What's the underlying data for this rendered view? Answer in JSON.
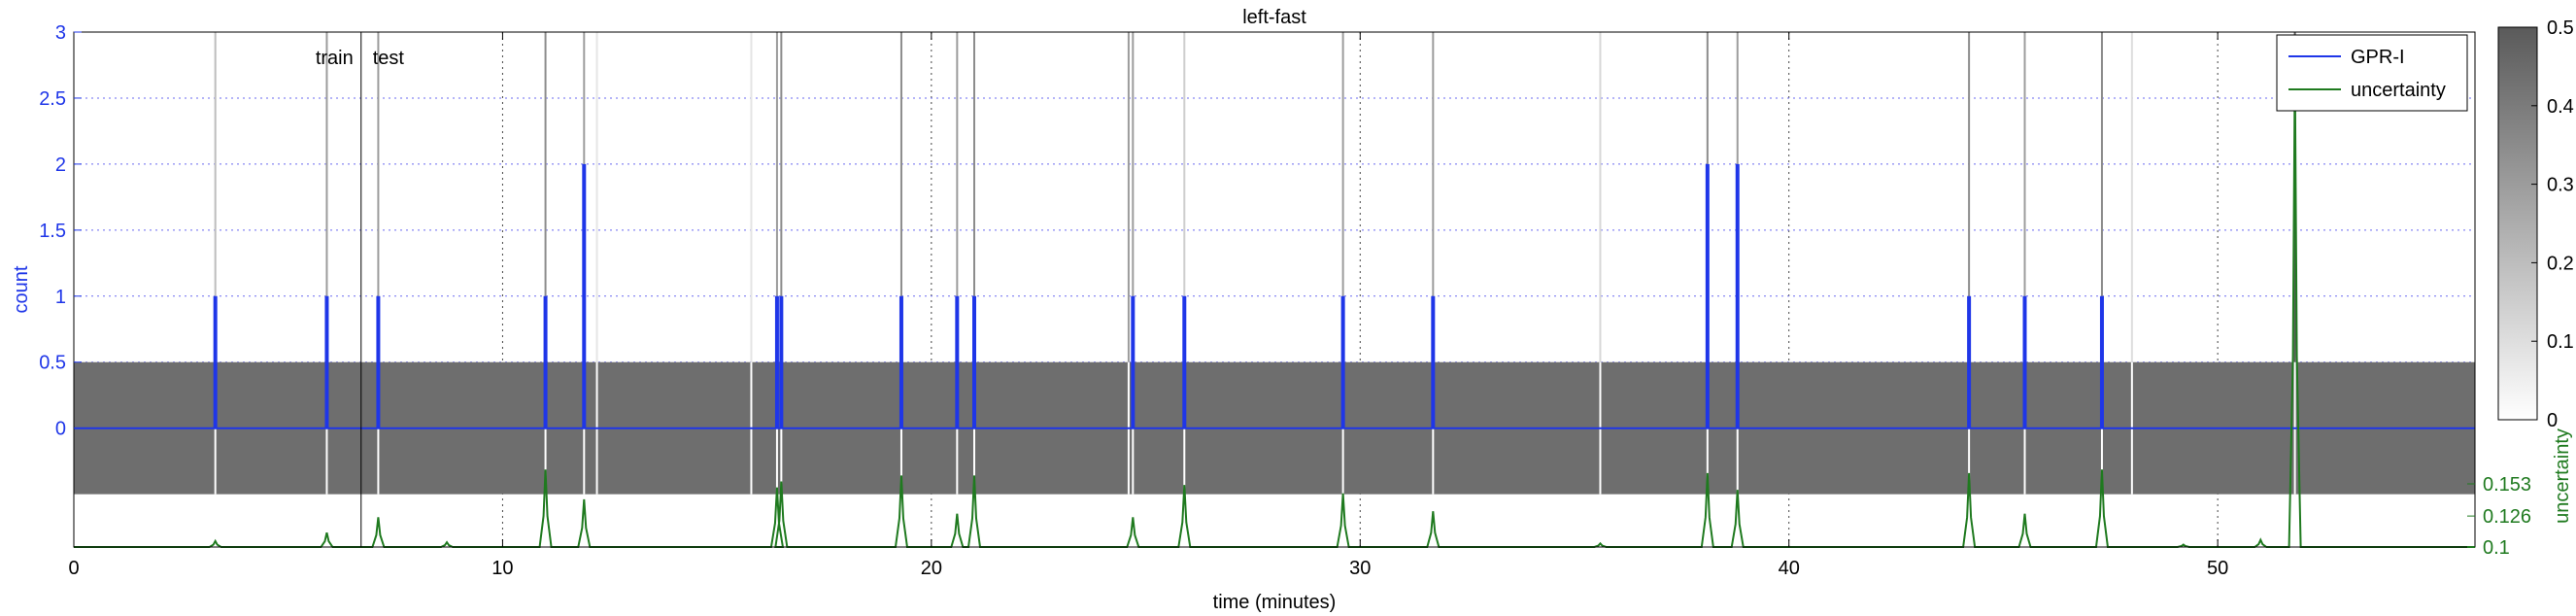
{
  "chart_data": {
    "type": "line",
    "title": "left-fast",
    "xlabel": "time (minutes)",
    "ylabel": "count",
    "y2label": "uncertainty",
    "xlim": [
      0,
      56
    ],
    "ylim": [
      -0.9,
      3
    ],
    "x_ticks": [
      0,
      10,
      20,
      30,
      40,
      50
    ],
    "y_ticks": [
      0,
      0.5,
      1,
      1.5,
      2,
      2.5,
      3
    ],
    "y_tick_labels": [
      "0",
      "0.5",
      "1",
      "1.5",
      "2",
      "2.5",
      "3"
    ],
    "y2_ticks": [
      0.1,
      0.126,
      0.153
    ],
    "y2_tick_labels": [
      "0.1",
      "0.126",
      "0.153"
    ],
    "grid": true,
    "legend": "top-right",
    "band": {
      "from": -0.5,
      "to": 0.5,
      "color": "#6e6e6e"
    },
    "train_test_split": 6.7,
    "split_labels": {
      "train": "train",
      "test": "test"
    },
    "colorbar": {
      "min": 0,
      "max": 0.5,
      "ticks": [
        0,
        0.1,
        0.2,
        0.3,
        0.4,
        0.5
      ],
      "tick_labels": [
        "0",
        "0.1",
        "0.2",
        "0.3",
        "0.4",
        "0.5"
      ]
    },
    "series": [
      {
        "name": "GPR-I",
        "color": "#1f36e8",
        "events": [
          {
            "x": 3.3,
            "y": 1
          },
          {
            "x": 5.9,
            "y": 1
          },
          {
            "x": 7.1,
            "y": 1
          },
          {
            "x": 11.0,
            "y": 1
          },
          {
            "x": 11.9,
            "y": 2
          },
          {
            "x": 16.4,
            "y": 1
          },
          {
            "x": 16.5,
            "y": 1
          },
          {
            "x": 19.3,
            "y": 1
          },
          {
            "x": 20.6,
            "y": 1
          },
          {
            "x": 21.0,
            "y": 1
          },
          {
            "x": 24.7,
            "y": 1
          },
          {
            "x": 25.9,
            "y": 1
          },
          {
            "x": 29.6,
            "y": 1
          },
          {
            "x": 31.7,
            "y": 1
          },
          {
            "x": 38.1,
            "y": 2
          },
          {
            "x": 38.8,
            "y": 2
          },
          {
            "x": 44.2,
            "y": 1
          },
          {
            "x": 45.5,
            "y": 1
          },
          {
            "x": 47.3,
            "y": 1
          }
        ]
      },
      {
        "name": "uncertainty",
        "color": "#1f7a1f",
        "baseline": 0.1,
        "peaks": [
          {
            "x": 3.3,
            "y": 0.105
          },
          {
            "x": 5.9,
            "y": 0.112
          },
          {
            "x": 7.1,
            "y": 0.125
          },
          {
            "x": 8.7,
            "y": 0.104
          },
          {
            "x": 11.0,
            "y": 0.165
          },
          {
            "x": 11.9,
            "y": 0.14
          },
          {
            "x": 16.4,
            "y": 0.15
          },
          {
            "x": 16.5,
            "y": 0.155
          },
          {
            "x": 19.3,
            "y": 0.16
          },
          {
            "x": 20.6,
            "y": 0.128
          },
          {
            "x": 21.0,
            "y": 0.16
          },
          {
            "x": 24.7,
            "y": 0.125
          },
          {
            "x": 25.9,
            "y": 0.152
          },
          {
            "x": 29.6,
            "y": 0.145
          },
          {
            "x": 31.7,
            "y": 0.13
          },
          {
            "x": 35.6,
            "y": 0.103
          },
          {
            "x": 38.1,
            "y": 0.162
          },
          {
            "x": 38.8,
            "y": 0.148
          },
          {
            "x": 44.2,
            "y": 0.162
          },
          {
            "x": 45.5,
            "y": 0.128
          },
          {
            "x": 47.3,
            "y": 0.165
          },
          {
            "x": 49.2,
            "y": 0.102
          },
          {
            "x": 51.0,
            "y": 0.106
          },
          {
            "x": 51.8,
            "y": 0.5
          }
        ]
      }
    ],
    "uncertainty_lines": [
      {
        "x": 3.3,
        "v": 0.2
      },
      {
        "x": 5.9,
        "v": 0.3
      },
      {
        "x": 7.1,
        "v": 0.3
      },
      {
        "x": 11.0,
        "v": 0.35
      },
      {
        "x": 11.9,
        "v": 0.3
      },
      {
        "x": 12.2,
        "v": 0.08
      },
      {
        "x": 15.8,
        "v": 0.08
      },
      {
        "x": 16.4,
        "v": 0.3
      },
      {
        "x": 16.5,
        "v": 0.35
      },
      {
        "x": 19.3,
        "v": 0.35
      },
      {
        "x": 20.6,
        "v": 0.3
      },
      {
        "x": 21.0,
        "v": 0.35
      },
      {
        "x": 24.6,
        "v": 0.3
      },
      {
        "x": 24.7,
        "v": 0.3
      },
      {
        "x": 25.9,
        "v": 0.15
      },
      {
        "x": 29.6,
        "v": 0.3
      },
      {
        "x": 31.7,
        "v": 0.3
      },
      {
        "x": 35.6,
        "v": 0.12
      },
      {
        "x": 38.1,
        "v": 0.35
      },
      {
        "x": 38.8,
        "v": 0.3
      },
      {
        "x": 44.2,
        "v": 0.35
      },
      {
        "x": 45.5,
        "v": 0.3
      },
      {
        "x": 47.3,
        "v": 0.35
      },
      {
        "x": 48.0,
        "v": 0.1
      },
      {
        "x": 51.8,
        "v": 0.5
      }
    ]
  }
}
